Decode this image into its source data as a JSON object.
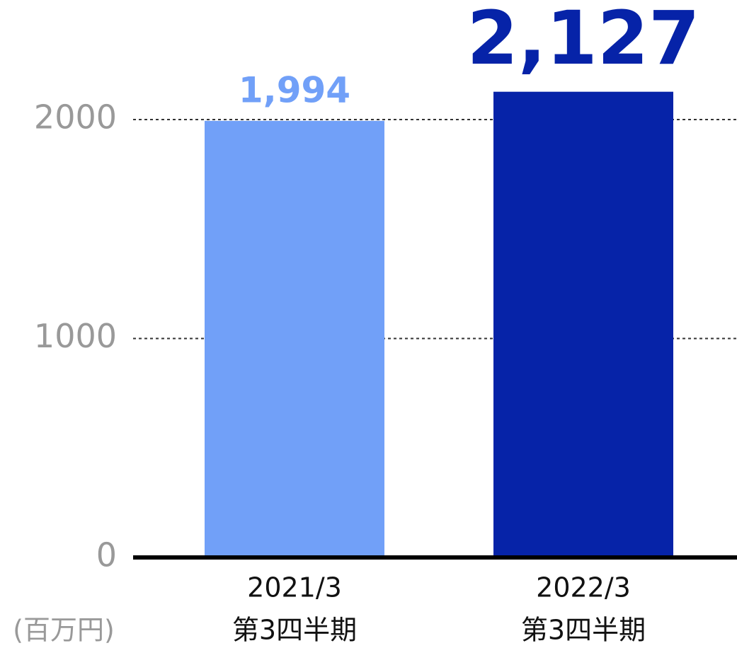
{
  "chart_data": {
    "type": "bar",
    "categories": [
      [
        "2021/3",
        "第3四半期"
      ],
      [
        "2022/3",
        "第3四半期"
      ]
    ],
    "values": [
      1994,
      2127
    ],
    "value_labels": [
      "1,994",
      "2,127"
    ],
    "colors": [
      "#71a0f8",
      "#0623a8"
    ],
    "ylabel": "(百万円)",
    "ylim": [
      0,
      2546
    ],
    "yticks": [
      0,
      1000,
      2000
    ],
    "grid": true
  }
}
